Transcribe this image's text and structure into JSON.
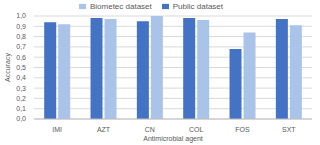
{
  "chart_data": {
    "type": "bar",
    "x_label": "Antimicrobial agent",
    "y_label": "Accuracy",
    "categories": [
      "IMI",
      "AZT",
      "CN",
      "COL",
      "FOS",
      "SXT"
    ],
    "series": [
      {
        "name": "Public dataset",
        "color": "#4472c4",
        "values": [
          0.94,
          0.98,
          0.95,
          0.98,
          0.68,
          0.97
        ]
      },
      {
        "name": "Biometec dataset",
        "color": "#a9c4e8",
        "values": [
          0.92,
          0.97,
          1.0,
          0.96,
          0.84,
          0.91
        ]
      }
    ],
    "ylim": [
      0,
      1
    ],
    "yticks": [
      {
        "value": 0,
        "label": "0,0"
      },
      {
        "value": 0.1,
        "label": "0,1"
      },
      {
        "value": 0.2,
        "label": "0,2"
      },
      {
        "value": 0.3,
        "label": "0,3"
      },
      {
        "value": 0.4,
        "label": "0,4"
      },
      {
        "value": 0.5,
        "label": "0,5"
      },
      {
        "value": 0.6,
        "label": "0,6"
      },
      {
        "value": 0.7,
        "label": "0,7"
      },
      {
        "value": 0.8,
        "label": "0,8"
      },
      {
        "value": 0.9,
        "label": "0,9"
      },
      {
        "value": 1,
        "label": "1,0"
      }
    ],
    "grid": true,
    "legend": "top"
  }
}
